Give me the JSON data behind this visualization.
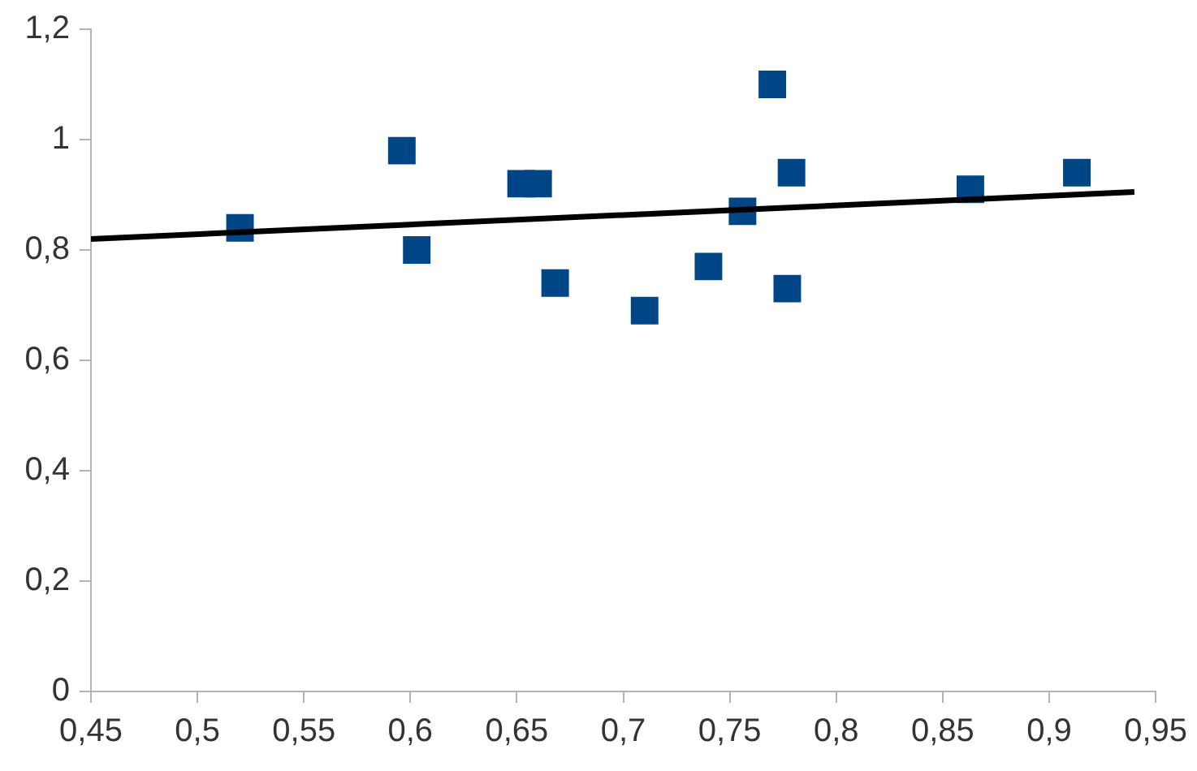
{
  "chart_data": {
    "type": "scatter",
    "series": [
      {
        "color": "#004586",
        "x": [
          0.52,
          0.596,
          0.603,
          0.652,
          0.66,
          0.668,
          0.71,
          0.74,
          0.756,
          0.77,
          0.777,
          0.779,
          0.863,
          0.913
        ],
        "values": [
          0.84,
          0.98,
          0.8,
          0.92,
          0.92,
          0.74,
          0.69,
          0.77,
          0.87,
          1.1,
          0.73,
          0.94,
          0.91,
          0.94
        ]
      },
      {
        "type": "line",
        "color": "#000000",
        "marker": "none",
        "x": [
          0.45,
          0.94
        ],
        "values": [
          0.82,
          0.905
        ]
      }
    ],
    "xlim": [
      0.45,
      0.95
    ],
    "xticks": [
      {
        "value": 0.45,
        "label": "0,45"
      },
      {
        "value": 0.5,
        "label": "0,5"
      },
      {
        "value": 0.55,
        "label": "0,55"
      },
      {
        "value": 0.6,
        "label": "0,6"
      },
      {
        "value": 0.65,
        "label": "0,65"
      },
      {
        "value": 0.7,
        "label": "0,7"
      },
      {
        "value": 0.75,
        "label": "0,75"
      },
      {
        "value": 0.8,
        "label": "0,8"
      },
      {
        "value": 0.85,
        "label": "0,85"
      },
      {
        "value": 0.9,
        "label": "0,9"
      },
      {
        "value": 0.95,
        "label": "0,95"
      }
    ],
    "ylim": [
      0,
      1.2
    ],
    "yticks": [
      0,
      {
        "value": 0.2,
        "label": "0,2"
      },
      {
        "value": 0.4,
        "label": "0,4"
      },
      {
        "value": 0.6,
        "label": "0,6"
      },
      {
        "value": 0.8,
        "label": "0,8"
      },
      1,
      {
        "value": 1.2,
        "label": "1,2"
      }
    ],
    "marker": "square",
    "grid": false,
    "legend": false
  }
}
